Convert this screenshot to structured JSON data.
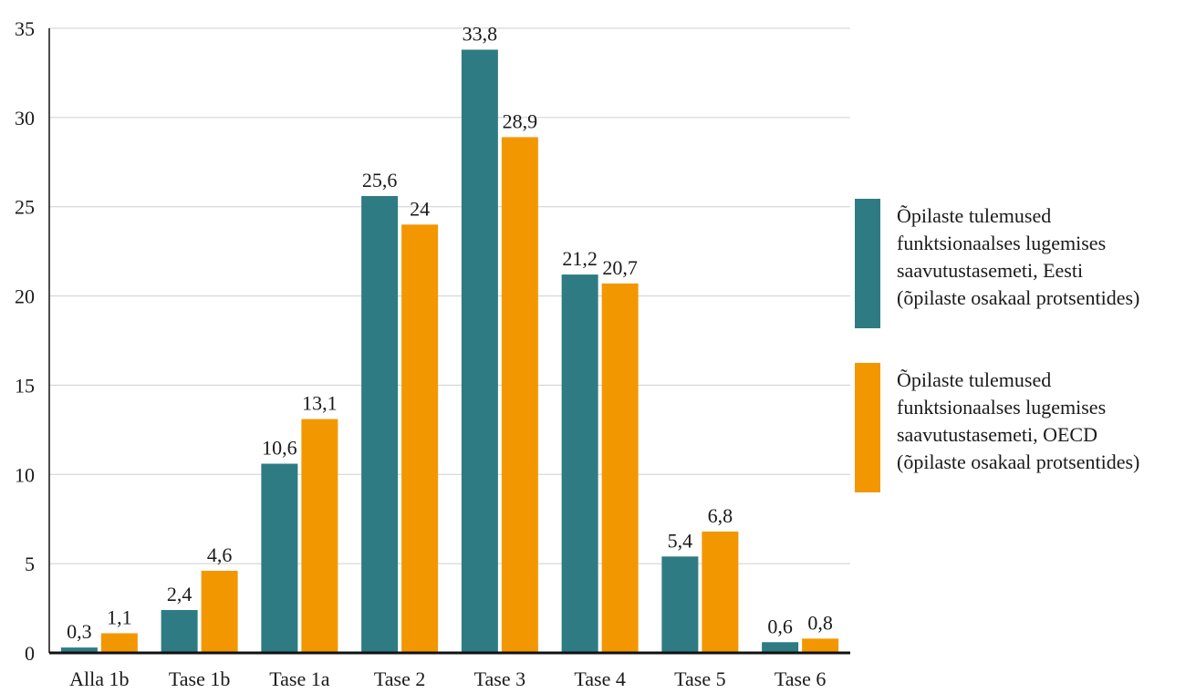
{
  "chart_data": {
    "type": "bar",
    "categories": [
      "Alla 1b",
      "Tase 1b",
      "Tase 1a",
      "Tase 2",
      "Tase 3",
      "Tase 4",
      "Tase 5",
      "Tase 6"
    ],
    "series": [
      {
        "name": "Õpilaste tulemused funktsionaalses lugemises saavutustasemeti, Eesti (õpilaste osakaal protsentides)",
        "color": "#2e7b83",
        "values": [
          0.3,
          2.4,
          10.6,
          25.6,
          33.8,
          21.2,
          5.4,
          0.6
        ],
        "labels": [
          "0,3",
          "2,4",
          "10,6",
          "25,6",
          "33,8",
          "21,2",
          "5,4",
          "0,6"
        ]
      },
      {
        "name": "Õpilaste tulemused funktsionaalses lugemises saavutustasemeti, OECD (õpilaste osakaal protsentides)",
        "color": "#f39700",
        "values": [
          1.1,
          4.6,
          13.1,
          24,
          28.9,
          20.7,
          6.8,
          0.8
        ],
        "labels": [
          "1,1",
          "4,6",
          "13,1",
          "24",
          "28,9",
          "20,7",
          "6,8",
          "0,8"
        ]
      }
    ],
    "ylim": [
      0,
      35
    ],
    "yticks": [
      0,
      5,
      10,
      15,
      20,
      25,
      30,
      35
    ],
    "grid": true,
    "legend_position": "right"
  },
  "legend": {
    "items": [
      {
        "label": "Õpilaste tulemused\nfunktsionaalses lugemises\nsaavutustasemeti, Eesti\n(õpilaste osakaal protsentides)",
        "color": "#2e7b83"
      },
      {
        "label": "Õpilaste tulemused\nfunktsionaalses lugemises\nsaavutustasemeti, OECD\n(õpilaste osakaal protsentides)",
        "color": "#f39700"
      }
    ]
  }
}
